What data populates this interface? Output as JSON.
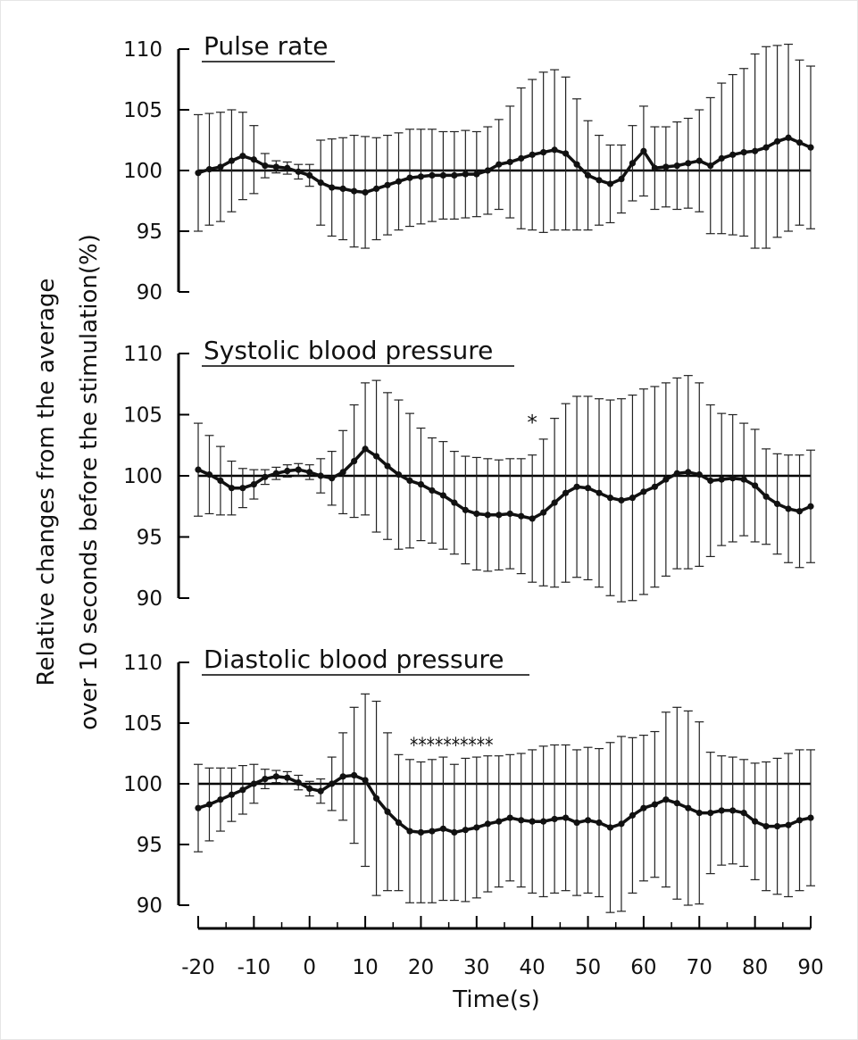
{
  "chart_data": {
    "type": "line",
    "x_axis": {
      "label": "Time(s)",
      "range": [
        -20,
        90
      ],
      "ticks": [
        -20,
        -10,
        0,
        10,
        20,
        30,
        40,
        50,
        60,
        70,
        80,
        90
      ],
      "tick_labels": [
        "-20",
        "-10",
        "0",
        "10",
        "20",
        "30",
        "40",
        "50",
        "60",
        "70",
        "80",
        "90"
      ]
    },
    "y_axis": {
      "label_line1": "Relative changes from the average",
      "label_line2": "over 10 seconds before the stimulation(%)",
      "range": [
        90,
        110
      ],
      "ticks": [
        90,
        95,
        100,
        105,
        110
      ],
      "tick_labels": [
        "90",
        "95",
        "100",
        "105",
        "110"
      ],
      "reference_line": 100
    },
    "panels": [
      {
        "title": "Pulse rate",
        "points": [
          [
            -20,
            99.8,
            4.8
          ],
          [
            -18,
            100.1,
            4.6
          ],
          [
            -16,
            100.3,
            4.5
          ],
          [
            -14,
            100.8,
            4.2
          ],
          [
            -12,
            101.2,
            3.6
          ],
          [
            -10,
            100.9,
            2.8
          ],
          [
            -8,
            100.4,
            1.0
          ],
          [
            -6,
            100.3,
            0.5
          ],
          [
            -4,
            100.2,
            0.5
          ],
          [
            -2,
            99.9,
            0.6
          ],
          [
            0,
            99.6,
            0.9
          ],
          [
            2,
            99.0,
            3.5
          ],
          [
            4,
            98.6,
            4.0
          ],
          [
            6,
            98.5,
            4.2
          ],
          [
            8,
            98.3,
            4.6
          ],
          [
            10,
            98.2,
            4.6
          ],
          [
            12,
            98.5,
            4.2
          ],
          [
            14,
            98.8,
            4.1
          ],
          [
            16,
            99.1,
            4.0
          ],
          [
            18,
            99.4,
            4.0
          ],
          [
            20,
            99.5,
            3.9
          ],
          [
            22,
            99.6,
            3.8
          ],
          [
            24,
            99.6,
            3.6
          ],
          [
            26,
            99.6,
            3.6
          ],
          [
            28,
            99.7,
            3.6
          ],
          [
            30,
            99.7,
            3.5
          ],
          [
            32,
            100.0,
            3.6
          ],
          [
            34,
            100.5,
            3.7
          ],
          [
            36,
            100.7,
            4.6
          ],
          [
            38,
            101.0,
            5.8
          ],
          [
            40,
            101.3,
            6.2
          ],
          [
            42,
            101.5,
            6.6
          ],
          [
            44,
            101.7,
            6.6
          ],
          [
            46,
            101.4,
            6.3
          ],
          [
            48,
            100.5,
            5.4
          ],
          [
            50,
            99.6,
            4.5
          ],
          [
            52,
            99.2,
            3.7
          ],
          [
            54,
            98.9,
            3.2
          ],
          [
            56,
            99.3,
            2.8
          ],
          [
            58,
            100.6,
            3.1
          ],
          [
            60,
            101.6,
            3.7
          ],
          [
            62,
            100.2,
            3.4
          ],
          [
            64,
            100.3,
            3.3
          ],
          [
            66,
            100.4,
            3.6
          ],
          [
            68,
            100.6,
            3.7
          ],
          [
            70,
            100.8,
            4.2
          ],
          [
            72,
            100.4,
            5.6
          ],
          [
            74,
            101.0,
            6.2
          ],
          [
            76,
            101.3,
            6.6
          ],
          [
            78,
            101.5,
            6.9
          ],
          [
            80,
            101.6,
            8.0
          ],
          [
            82,
            101.9,
            8.3
          ],
          [
            84,
            102.4,
            7.9
          ],
          [
            86,
            102.7,
            7.7
          ],
          [
            88,
            102.3,
            6.8
          ],
          [
            90,
            101.9,
            6.7
          ]
        ]
      },
      {
        "title": "Systolic blood pressure",
        "points": [
          [
            -20,
            100.5,
            3.8
          ],
          [
            -18,
            100.1,
            3.2
          ],
          [
            -16,
            99.6,
            2.8
          ],
          [
            -14,
            99.0,
            2.2
          ],
          [
            -12,
            99.0,
            1.6
          ],
          [
            -10,
            99.3,
            1.2
          ],
          [
            -8,
            99.9,
            0.6
          ],
          [
            -6,
            100.2,
            0.5
          ],
          [
            -4,
            100.4,
            0.5
          ],
          [
            -2,
            100.5,
            0.5
          ],
          [
            0,
            100.3,
            0.6
          ],
          [
            2,
            100.0,
            1.4
          ],
          [
            4,
            99.8,
            2.2
          ],
          [
            6,
            100.3,
            3.4
          ],
          [
            8,
            101.2,
            4.6
          ],
          [
            10,
            102.2,
            5.4
          ],
          [
            12,
            101.6,
            6.2
          ],
          [
            14,
            100.8,
            6.0
          ],
          [
            16,
            100.1,
            6.1
          ],
          [
            18,
            99.6,
            5.5
          ],
          [
            20,
            99.3,
            4.6
          ],
          [
            22,
            98.8,
            4.3
          ],
          [
            24,
            98.4,
            4.4
          ],
          [
            26,
            97.8,
            4.2
          ],
          [
            28,
            97.2,
            4.4
          ],
          [
            30,
            96.9,
            4.6
          ],
          [
            32,
            96.8,
            4.6
          ],
          [
            34,
            96.8,
            4.5
          ],
          [
            36,
            96.9,
            4.5
          ],
          [
            38,
            96.7,
            4.7
          ],
          [
            40,
            96.5,
            5.2
          ],
          [
            42,
            97.0,
            6.0
          ],
          [
            44,
            97.8,
            6.9
          ],
          [
            46,
            98.6,
            7.3
          ],
          [
            48,
            99.1,
            7.4
          ],
          [
            50,
            99.0,
            7.5
          ],
          [
            52,
            98.6,
            7.7
          ],
          [
            54,
            98.2,
            8.0
          ],
          [
            56,
            98.0,
            8.3
          ],
          [
            58,
            98.2,
            8.4
          ],
          [
            60,
            98.7,
            8.4
          ],
          [
            62,
            99.1,
            8.2
          ],
          [
            64,
            99.7,
            7.9
          ],
          [
            66,
            100.2,
            7.8
          ],
          [
            68,
            100.3,
            7.9
          ],
          [
            70,
            100.1,
            7.5
          ],
          [
            72,
            99.6,
            6.2
          ],
          [
            74,
            99.7,
            5.4
          ],
          [
            76,
            99.8,
            5.2
          ],
          [
            78,
            99.7,
            4.6
          ],
          [
            80,
            99.2,
            4.6
          ],
          [
            82,
            98.3,
            3.9
          ],
          [
            84,
            97.7,
            4.1
          ],
          [
            86,
            97.3,
            4.4
          ],
          [
            88,
            97.1,
            4.6
          ],
          [
            90,
            97.5,
            4.6
          ]
        ],
        "annotations": [
          {
            "x": 40,
            "text": "*"
          }
        ]
      },
      {
        "title": "Diastolic blood pressure",
        "points": [
          [
            -20,
            98.0,
            3.6
          ],
          [
            -18,
            98.3,
            3.0
          ],
          [
            -16,
            98.7,
            2.6
          ],
          [
            -14,
            99.1,
            2.2
          ],
          [
            -12,
            99.5,
            2.0
          ],
          [
            -10,
            100.0,
            1.6
          ],
          [
            -8,
            100.4,
            0.8
          ],
          [
            -6,
            100.6,
            0.5
          ],
          [
            -4,
            100.5,
            0.5
          ],
          [
            -2,
            100.1,
            0.6
          ],
          [
            0,
            99.6,
            0.6
          ],
          [
            2,
            99.4,
            1.0
          ],
          [
            4,
            100.0,
            2.2
          ],
          [
            6,
            100.6,
            3.6
          ],
          [
            8,
            100.7,
            5.6
          ],
          [
            10,
            100.3,
            7.1
          ],
          [
            12,
            98.8,
            8.0
          ],
          [
            14,
            97.7,
            6.5
          ],
          [
            16,
            96.8,
            5.6
          ],
          [
            18,
            96.1,
            5.9
          ],
          [
            20,
            96.0,
            5.8
          ],
          [
            22,
            96.1,
            5.9
          ],
          [
            24,
            96.3,
            5.9
          ],
          [
            26,
            96.0,
            5.6
          ],
          [
            28,
            96.2,
            5.9
          ],
          [
            30,
            96.4,
            5.8
          ],
          [
            32,
            96.7,
            5.6
          ],
          [
            34,
            96.9,
            5.4
          ],
          [
            36,
            97.2,
            5.2
          ],
          [
            38,
            97.0,
            5.5
          ],
          [
            40,
            96.9,
            5.9
          ],
          [
            42,
            96.9,
            6.2
          ],
          [
            44,
            97.1,
            6.1
          ],
          [
            46,
            97.2,
            6.0
          ],
          [
            48,
            96.8,
            6.0
          ],
          [
            50,
            97.0,
            6.0
          ],
          [
            52,
            96.8,
            6.1
          ],
          [
            54,
            96.4,
            7.0
          ],
          [
            56,
            96.7,
            7.2
          ],
          [
            58,
            97.4,
            6.4
          ],
          [
            60,
            98.0,
            6.0
          ],
          [
            62,
            98.3,
            6.0
          ],
          [
            64,
            98.7,
            7.2
          ],
          [
            66,
            98.4,
            7.9
          ],
          [
            68,
            98.0,
            8.0
          ],
          [
            70,
            97.6,
            7.5
          ],
          [
            72,
            97.6,
            5.0
          ],
          [
            74,
            97.8,
            4.5
          ],
          [
            76,
            97.8,
            4.4
          ],
          [
            78,
            97.6,
            4.4
          ],
          [
            80,
            96.9,
            4.8
          ],
          [
            82,
            96.5,
            5.3
          ],
          [
            84,
            96.5,
            5.6
          ],
          [
            86,
            96.6,
            5.9
          ],
          [
            88,
            97.0,
            5.8
          ],
          [
            90,
            97.2,
            5.6
          ]
        ],
        "annotations": [
          {
            "x_range": [
              18,
              33
            ],
            "text": "**********"
          }
        ]
      }
    ]
  }
}
